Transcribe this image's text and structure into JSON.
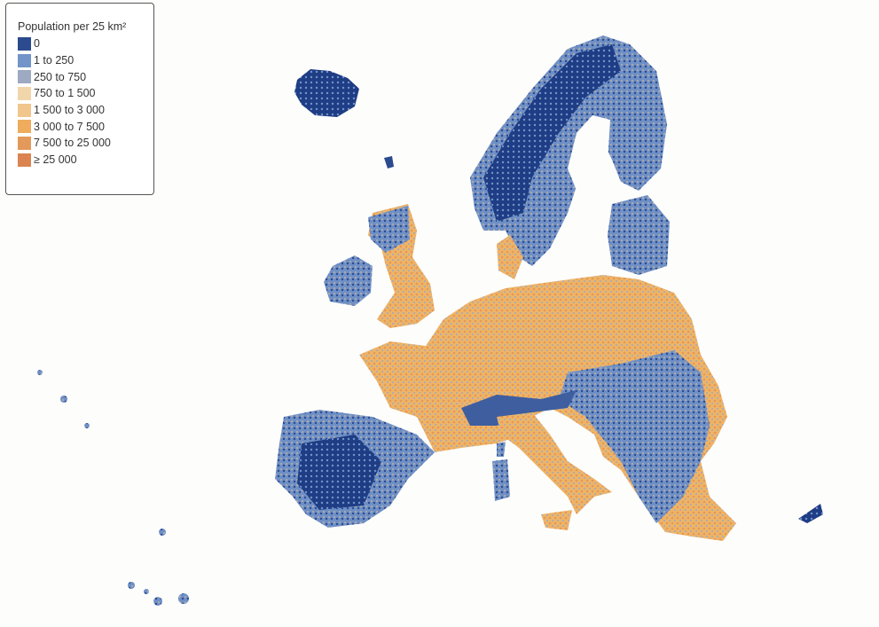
{
  "legend": {
    "title": "Population per 25 km²",
    "items": [
      {
        "label": "0",
        "color": "#2c4a8e"
      },
      {
        "label": "1 to 250",
        "color": "#7294c9"
      },
      {
        "label": "250 to 750",
        "color": "#9ea9c2"
      },
      {
        "label": "750 to 1 500",
        "color": "#f1d6ab"
      },
      {
        "label": "1 500 to 3 000",
        "color": "#f0c68c"
      },
      {
        "label": "3 000 to 7 500",
        "color": "#eeac5c"
      },
      {
        "label": "7 500 to 25 000",
        "color": "#e3995a"
      },
      {
        "label": "≥ 25 000",
        "color": "#db8451"
      }
    ]
  }
}
